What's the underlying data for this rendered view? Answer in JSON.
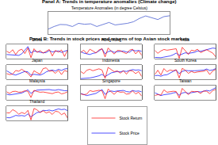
{
  "chart_data": [
    {
      "type": "line",
      "title": "Panel A: Trends in temperature anomalies (Climate change)",
      "subtitle": "Temperature Anomalies (in degree Celsius)",
      "x": [
        2000,
        2001,
        2002,
        2003,
        2004,
        2005,
        2006,
        2007,
        2008,
        2009,
        2010,
        2011,
        2012,
        2013,
        2014,
        2015,
        2016,
        2017,
        2018,
        2019,
        2020
      ],
      "xlim": [
        2000,
        2020
      ],
      "ylim": [
        0.2,
        1.2
      ],
      "tick_labels": false,
      "grid": false,
      "series": [
        {
          "color": "#4a5fd0",
          "values": [
            0.42,
            0.54,
            0.63,
            0.62,
            0.54,
            0.68,
            0.64,
            0.66,
            0.54,
            0.64,
            0.72,
            0.61,
            0.65,
            0.68,
            0.75,
            0.9,
            1.01,
            0.92,
            0.85,
            0.98,
            1.02
          ]
        }
      ]
    },
    {
      "type": "grid",
      "title": "Panel B: Trends in stock prices and returns of top Asian stock markets",
      "legend": "bottom",
      "tick_labels": false,
      "grid": false,
      "x": [
        2000,
        2001,
        2002,
        2003,
        2004,
        2005,
        2006,
        2007,
        2008,
        2009,
        2010,
        2011,
        2012,
        2013,
        2014,
        2015,
        2016,
        2017,
        2018,
        2019,
        2020
      ],
      "xlim": [
        2000,
        2020
      ],
      "ylim": [
        0,
        100
      ],
      "y2lim": [
        -0.3,
        0.3
      ],
      "series_info": [
        {
          "name": "Stock Price",
          "color": "#0000ff"
        },
        {
          "name": "Stock Return",
          "color": "#ff0000",
          "axis": "y2"
        }
      ],
      "charts": [
        {
          "title": "China",
          "price": [
            30,
            28,
            25,
            22,
            24,
            35,
            60,
            85,
            40,
            55,
            50,
            45,
            42,
            44,
            58,
            48,
            50,
            55,
            45,
            52,
            60
          ],
          "returns": [
            0.02,
            -0.05,
            0.08,
            -0.12,
            0.05,
            0.1,
            -0.08,
            0.15,
            -0.25,
            0.12,
            -0.03,
            0.04,
            -0.06,
            0.02,
            0.09,
            -0.18,
            0.05,
            -0.02,
            0.07,
            -0.2,
            0.06
          ]
        },
        {
          "title": "Hong Kong",
          "price": [
            50,
            40,
            35,
            30,
            38,
            42,
            55,
            70,
            35,
            50,
            55,
            45,
            50,
            52,
            54,
            48,
            46,
            62,
            55,
            58,
            52
          ],
          "returns": [
            -0.04,
            0.06,
            -0.08,
            0.1,
            0.03,
            -0.05,
            0.07,
            0.12,
            -0.22,
            0.15,
            0.02,
            -0.1,
            0.05,
            0.04,
            -0.03,
            -0.08,
            0.06,
            0.1,
            -0.09,
            0.03,
            -0.15
          ]
        },
        {
          "title": "India",
          "price": [
            10,
            9,
            8,
            12,
            15,
            20,
            28,
            40,
            25,
            35,
            42,
            38,
            40,
            45,
            55,
            52,
            58,
            65,
            70,
            75,
            72
          ],
          "returns": [
            0.05,
            -0.07,
            0.03,
            0.09,
            0.06,
            0.08,
            0.1,
            0.12,
            -0.28,
            0.18,
            0.04,
            -0.12,
            0.06,
            0.03,
            0.1,
            -0.04,
            0.02,
            0.08,
            0.01,
            -0.06,
            -0.22
          ]
        },
        {
          "title": "Japan",
          "price": [
            60,
            45,
            35,
            30,
            38,
            50,
            55,
            52,
            30,
            35,
            33,
            30,
            38,
            52,
            60,
            65,
            58,
            70,
            62,
            72,
            75
          ],
          "returns": [
            -0.06,
            -0.1,
            -0.08,
            0.07,
            0.04,
            0.12,
            0.03,
            -0.05,
            -0.2,
            0.06,
            -0.02,
            -0.08,
            0.15,
            0.18,
            0.04,
            0.06,
            -0.05,
            0.08,
            -0.1,
            0.07,
            0.02
          ]
        },
        {
          "title": "Indonesia",
          "price": [
            5,
            6,
            7,
            10,
            14,
            18,
            25,
            35,
            20,
            32,
            45,
            50,
            55,
            52,
            58,
            55,
            62,
            68,
            64,
            66,
            60
          ],
          "returns": [
            0.03,
            -0.06,
            0.08,
            0.12,
            0.06,
            0.1,
            0.14,
            0.09,
            -0.26,
            0.2,
            0.11,
            0.02,
            0.05,
            -0.04,
            0.06,
            -0.08,
            0.07,
            0.05,
            -0.06,
            0.03,
            -0.18
          ]
        },
        {
          "title": "South Korea",
          "price": [
            25,
            28,
            22,
            30,
            32,
            45,
            55,
            65,
            40,
            55,
            62,
            60,
            62,
            60,
            61,
            62,
            64,
            72,
            62,
            66,
            75
          ],
          "returns": [
            -0.1,
            0.08,
            -0.12,
            0.15,
            0.02,
            0.09,
            0.06,
            0.1,
            -0.24,
            0.16,
            0.08,
            -0.05,
            0.03,
            -0.02,
            0.01,
            0.02,
            0.04,
            0.09,
            -0.1,
            0.05,
            0.12
          ]
        },
        {
          "title": "Malaysia",
          "price": [
            40,
            35,
            38,
            42,
            45,
            48,
            58,
            70,
            45,
            60,
            68,
            70,
            72,
            74,
            72,
            68,
            67,
            72,
            66,
            64,
            65
          ],
          "returns": [
            0.04,
            -0.03,
            0.05,
            0.06,
            0.02,
            0.03,
            0.08,
            0.06,
            -0.2,
            0.1,
            0.05,
            0.02,
            0.03,
            0.01,
            -0.02,
            -0.04,
            0.01,
            0.03,
            -0.05,
            -0.02,
            0.04
          ]
        },
        {
          "title": "Singapore",
          "price": [
            45,
            38,
            30,
            35,
            40,
            45,
            58,
            72,
            38,
            55,
            62,
            58,
            62,
            64,
            66,
            58,
            55,
            65,
            60,
            62,
            56
          ],
          "returns": [
            -0.05,
            -0.08,
            -0.06,
            0.09,
            0.05,
            0.07,
            0.1,
            0.08,
            -0.25,
            0.15,
            0.04,
            -0.07,
            0.06,
            0.02,
            0.03,
            -0.06,
            -0.04,
            0.08,
            -0.05,
            0.02,
            -0.14
          ]
        },
        {
          "title": "Taiwan",
          "price": [
            50,
            38,
            30,
            36,
            38,
            42,
            48,
            52,
            32,
            48,
            52,
            45,
            50,
            54,
            58,
            55,
            60,
            66,
            62,
            72,
            85
          ],
          "returns": [
            -0.12,
            -0.08,
            -0.1,
            0.12,
            0.02,
            0.04,
            0.06,
            0.05,
            -0.22,
            0.18,
            0.05,
            -0.08,
            0.06,
            0.04,
            0.05,
            -0.03,
            0.07,
            0.06,
            -0.04,
            0.09,
            0.14
          ]
        },
        {
          "title": "Thailand",
          "price": [
            20,
            18,
            25,
            35,
            32,
            34,
            30,
            45,
            25,
            40,
            55,
            58,
            70,
            68,
            72,
            66,
            72,
            80,
            75,
            78,
            68
          ],
          "returns": [
            0.02,
            0.01,
            0.15,
            0.08,
            -0.04,
            0.03,
            -0.02,
            0.12,
            -0.28,
            0.2,
            0.14,
            0.03,
            0.1,
            0.01,
            0.06,
            -0.05,
            0.08,
            0.06,
            -0.06,
            0.01,
            -0.2
          ]
        }
      ]
    }
  ]
}
